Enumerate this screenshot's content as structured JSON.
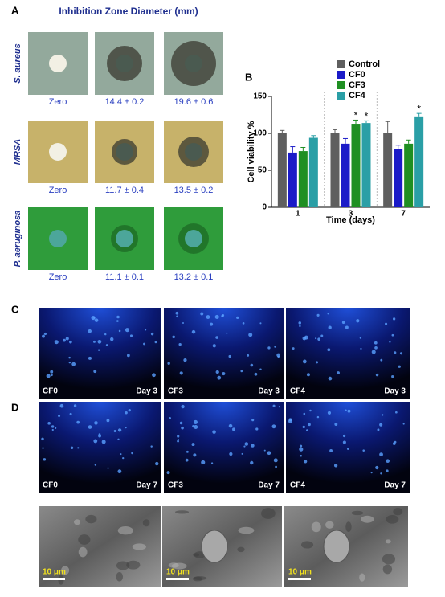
{
  "panel_a": {
    "label": "A",
    "title": "Inhibition Zone Diameter (mm)",
    "rows": [
      {
        "organism": "S. aureus",
        "results": [
          "Zero",
          "14.4 ± 0.2",
          "19.6 ± 0.6"
        ]
      },
      {
        "organism": "MRSA",
        "results": [
          "Zero",
          "11.7 ± 0.4",
          "13.5 ± 0.2"
        ]
      },
      {
        "organism": "P. aeruginosa",
        "results": [
          "Zero",
          "11.1 ± 0.1",
          "13.2 ± 0.1"
        ]
      }
    ]
  },
  "chart_data": {
    "type": "bar",
    "label": "B",
    "ylabel": "Cell viability %",
    "xlabel": "Time (days)",
    "categories": [
      "1",
      "3",
      "7"
    ],
    "series": [
      {
        "name": "Control",
        "color": "#5f5f5f",
        "values": [
          100,
          100,
          100
        ],
        "errors": [
          4,
          5,
          16
        ]
      },
      {
        "name": "CF0",
        "color": "#1b1bc8",
        "values": [
          74,
          86,
          79
        ],
        "errors": [
          8,
          7,
          5
        ]
      },
      {
        "name": "CF3",
        "color": "#1f8f22",
        "values": [
          76,
          113,
          86
        ],
        "errors": [
          5,
          5,
          5
        ]
      },
      {
        "name": "CF4",
        "color": "#2a9fa6",
        "values": [
          94,
          114,
          123
        ],
        "errors": [
          3,
          3,
          4
        ]
      }
    ],
    "markers": [
      {
        "label": "*",
        "series": "CF3",
        "category": "3"
      },
      {
        "label": "*",
        "series": "CF4",
        "category": "3"
      },
      {
        "label": "*",
        "series": "CF4",
        "category": "7"
      }
    ],
    "ylim": [
      0,
      150
    ],
    "yticks": [
      0,
      50,
      100,
      150
    ],
    "legend": "top"
  },
  "panel_c": {
    "label": "C",
    "images": [
      {
        "sample": "CF0",
        "day": "Day 3"
      },
      {
        "sample": "CF3",
        "day": "Day 3"
      },
      {
        "sample": "CF4",
        "day": "Day 3"
      }
    ]
  },
  "panel_d": {
    "label": "D",
    "images": [
      {
        "sample": "CF0",
        "day": "Day 7"
      },
      {
        "sample": "CF3",
        "day": "Day 7"
      },
      {
        "sample": "CF4",
        "day": "Day 7"
      }
    ],
    "sem_images": [
      {
        "scale": "10 μm"
      },
      {
        "scale": "10 μm"
      },
      {
        "scale": "10 μm"
      }
    ]
  }
}
